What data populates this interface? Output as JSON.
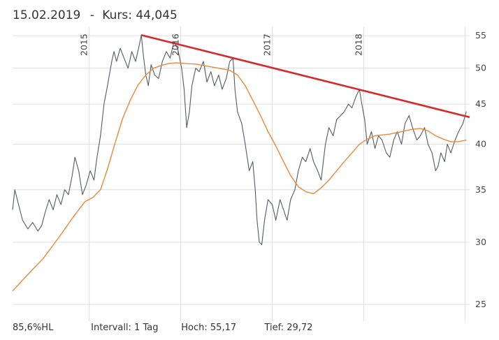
{
  "header": {
    "date": "15.02.2019",
    "separator": "-",
    "price_label": "Kurs:",
    "price": "44,045"
  },
  "footer": {
    "scale": "85,6%HL",
    "interval": "Intervall: 1 Tag",
    "high": "Hoch:  55,17",
    "low": "Tief:  29,72"
  },
  "chart_data": {
    "type": "line",
    "y_scale": "log",
    "ylim": [
      23.8,
      56.5
    ],
    "xlim": [
      "2014-03-01",
      "2019-02-28"
    ],
    "y_ticks": [
      "25",
      "30",
      "35",
      "40",
      "45",
      "50",
      "55"
    ],
    "x_ticks": [
      "2015",
      "2016",
      "2017",
      "2018"
    ],
    "grid": true,
    "colors": {
      "price": "#555a60",
      "moving_average": "#e8883a",
      "trendline": "#d42a2a",
      "grid": "#dddddd"
    },
    "series": [
      {
        "role": "price",
        "points": [
          [
            "2014-03-01",
            33.0
          ],
          [
            "2014-03-10",
            35.0
          ],
          [
            "2014-03-25",
            33.5
          ],
          [
            "2014-04-10",
            32.0
          ],
          [
            "2014-05-01",
            31.2
          ],
          [
            "2014-05-20",
            31.8
          ],
          [
            "2014-06-10",
            31.0
          ],
          [
            "2014-06-25",
            31.5
          ],
          [
            "2014-07-10",
            32.8
          ],
          [
            "2014-07-25",
            34.0
          ],
          [
            "2014-08-10",
            33.0
          ],
          [
            "2014-08-25",
            34.5
          ],
          [
            "2014-09-10",
            33.5
          ],
          [
            "2014-09-25",
            35.0
          ],
          [
            "2014-10-10",
            34.5
          ],
          [
            "2014-10-25",
            36.5
          ],
          [
            "2014-11-05",
            38.5
          ],
          [
            "2014-11-20",
            37.0
          ],
          [
            "2014-12-05",
            34.5
          ],
          [
            "2014-12-20",
            35.5
          ],
          [
            "2015-01-05",
            37.0
          ],
          [
            "2015-01-20",
            36.0
          ],
          [
            "2015-02-01",
            38.5
          ],
          [
            "2015-02-15",
            41.0
          ],
          [
            "2015-03-01",
            45.0
          ],
          [
            "2015-03-15",
            47.5
          ],
          [
            "2015-04-01",
            51.0
          ],
          [
            "2015-04-10",
            52.5
          ],
          [
            "2015-04-20",
            51.0
          ],
          [
            "2015-05-05",
            53.0
          ],
          [
            "2015-05-20",
            51.5
          ],
          [
            "2015-06-05",
            50.0
          ],
          [
            "2015-06-20",
            52.5
          ],
          [
            "2015-07-05",
            51.0
          ],
          [
            "2015-07-20",
            53.5
          ],
          [
            "2015-07-28",
            55.1
          ],
          [
            "2015-08-05",
            52.0
          ],
          [
            "2015-08-15",
            49.0
          ],
          [
            "2015-08-25",
            47.5
          ],
          [
            "2015-09-05",
            50.5
          ],
          [
            "2015-09-20",
            49.0
          ],
          [
            "2015-10-05",
            48.5
          ],
          [
            "2015-10-20",
            51.0
          ],
          [
            "2015-11-05",
            52.5
          ],
          [
            "2015-11-20",
            51.5
          ],
          [
            "2015-12-05",
            54.0
          ],
          [
            "2015-12-20",
            53.0
          ],
          [
            "2016-01-05",
            50.0
          ],
          [
            "2016-01-15",
            47.0
          ],
          [
            "2016-01-25",
            42.0
          ],
          [
            "2016-02-05",
            44.0
          ],
          [
            "2016-02-15",
            47.5
          ],
          [
            "2016-03-01",
            50.0
          ],
          [
            "2016-03-15",
            49.5
          ],
          [
            "2016-04-01",
            51.0
          ],
          [
            "2016-04-15",
            48.0
          ],
          [
            "2016-05-01",
            49.5
          ],
          [
            "2016-05-15",
            47.5
          ],
          [
            "2016-06-01",
            49.0
          ],
          [
            "2016-06-15",
            47.0
          ],
          [
            "2016-07-01",
            48.5
          ],
          [
            "2016-07-15",
            51.0
          ],
          [
            "2016-07-28",
            51.5
          ],
          [
            "2016-08-05",
            47.0
          ],
          [
            "2016-08-15",
            44.0
          ],
          [
            "2016-09-01",
            42.5
          ],
          [
            "2016-09-15",
            40.0
          ],
          [
            "2016-10-01",
            37.0
          ],
          [
            "2016-10-15",
            38.0
          ],
          [
            "2016-10-25",
            35.0
          ],
          [
            "2016-11-01",
            32.0
          ],
          [
            "2016-11-10",
            30.0
          ],
          [
            "2016-11-20",
            29.8
          ],
          [
            "2016-12-01",
            32.0
          ],
          [
            "2016-12-15",
            34.0
          ],
          [
            "2017-01-01",
            33.5
          ],
          [
            "2017-01-15",
            32.0
          ],
          [
            "2017-02-01",
            34.0
          ],
          [
            "2017-02-15",
            33.0
          ],
          [
            "2017-03-01",
            32.0
          ],
          [
            "2017-03-15",
            34.0
          ],
          [
            "2017-04-01",
            35.0
          ],
          [
            "2017-04-15",
            37.0
          ],
          [
            "2017-05-01",
            38.5
          ],
          [
            "2017-05-15",
            38.0
          ],
          [
            "2017-06-01",
            39.5
          ],
          [
            "2017-06-15",
            38.0
          ],
          [
            "2017-07-01",
            37.0
          ],
          [
            "2017-07-15",
            36.0
          ],
          [
            "2017-08-01",
            40.0
          ],
          [
            "2017-08-15",
            42.0
          ],
          [
            "2017-09-01",
            41.0
          ],
          [
            "2017-09-15",
            43.0
          ],
          [
            "2017-10-01",
            43.5
          ],
          [
            "2017-10-15",
            44.0
          ],
          [
            "2017-11-01",
            45.0
          ],
          [
            "2017-11-15",
            44.5
          ],
          [
            "2017-12-01",
            46.0
          ],
          [
            "2017-12-15",
            47.0
          ],
          [
            "2017-12-22",
            45.5
          ],
          [
            "2018-01-05",
            43.0
          ],
          [
            "2018-01-15",
            40.0
          ],
          [
            "2018-02-01",
            41.5
          ],
          [
            "2018-02-15",
            39.5
          ],
          [
            "2018-03-01",
            41.0
          ],
          [
            "2018-03-15",
            40.5
          ],
          [
            "2018-04-01",
            39.0
          ],
          [
            "2018-04-15",
            38.5
          ],
          [
            "2018-05-01",
            40.5
          ],
          [
            "2018-05-15",
            41.5
          ],
          [
            "2018-06-01",
            40.0
          ],
          [
            "2018-06-15",
            42.5
          ],
          [
            "2018-07-01",
            43.5
          ],
          [
            "2018-07-15",
            42.0
          ],
          [
            "2018-08-01",
            40.5
          ],
          [
            "2018-08-15",
            41.0
          ],
          [
            "2018-09-01",
            42.0
          ],
          [
            "2018-09-15",
            40.0
          ],
          [
            "2018-10-01",
            39.0
          ],
          [
            "2018-10-15",
            37.0
          ],
          [
            "2018-10-25",
            37.5
          ],
          [
            "2018-11-05",
            39.0
          ],
          [
            "2018-11-20",
            38.0
          ],
          [
            "2018-12-01",
            40.0
          ],
          [
            "2018-12-15",
            39.0
          ],
          [
            "2019-01-01",
            40.5
          ],
          [
            "2019-01-15",
            41.5
          ],
          [
            "2019-02-01",
            42.5
          ],
          [
            "2019-02-15",
            44.045
          ]
        ]
      },
      {
        "role": "moving_average",
        "points": [
          [
            "2014-03-01",
            26.0
          ],
          [
            "2014-05-01",
            27.3
          ],
          [
            "2014-07-01",
            28.6
          ],
          [
            "2014-09-01",
            30.4
          ],
          [
            "2014-11-01",
            32.4
          ],
          [
            "2014-12-15",
            33.8
          ],
          [
            "2015-01-15",
            34.2
          ],
          [
            "2015-02-15",
            35.0
          ],
          [
            "2015-03-15",
            37.2
          ],
          [
            "2015-04-15",
            40.2
          ],
          [
            "2015-05-15",
            43.2
          ],
          [
            "2015-06-15",
            45.6
          ],
          [
            "2015-07-15",
            47.6
          ],
          [
            "2015-08-15",
            49.0
          ],
          [
            "2015-09-15",
            50.0
          ],
          [
            "2015-10-15",
            50.4
          ],
          [
            "2015-11-15",
            50.7
          ],
          [
            "2015-12-15",
            50.8
          ],
          [
            "2016-01-15",
            50.7
          ],
          [
            "2016-03-01",
            50.6
          ],
          [
            "2016-04-15",
            50.3
          ],
          [
            "2016-06-01",
            50.0
          ],
          [
            "2016-07-15",
            49.7
          ],
          [
            "2016-08-15",
            49.0
          ],
          [
            "2016-09-15",
            47.5
          ],
          [
            "2016-10-15",
            45.5
          ],
          [
            "2016-11-15",
            43.5
          ],
          [
            "2016-12-15",
            41.5
          ],
          [
            "2017-01-15",
            39.8
          ],
          [
            "2017-02-15",
            38.0
          ],
          [
            "2017-03-15",
            36.5
          ],
          [
            "2017-04-15",
            35.3
          ],
          [
            "2017-05-15",
            34.8
          ],
          [
            "2017-06-15",
            34.6
          ],
          [
            "2017-07-15",
            35.2
          ],
          [
            "2017-08-15",
            36.0
          ],
          [
            "2017-09-15",
            37.0
          ],
          [
            "2017-10-15",
            38.0
          ],
          [
            "2017-11-15",
            39.0
          ],
          [
            "2017-12-15",
            40.0
          ],
          [
            "2018-01-15",
            40.6
          ],
          [
            "2018-02-15",
            41.0
          ],
          [
            "2018-03-15",
            41.1
          ],
          [
            "2018-04-15",
            41.2
          ],
          [
            "2018-05-15",
            41.4
          ],
          [
            "2018-06-15",
            41.6
          ],
          [
            "2018-07-15",
            41.8
          ],
          [
            "2018-08-15",
            41.9
          ],
          [
            "2018-09-15",
            41.6
          ],
          [
            "2018-10-15",
            41.0
          ],
          [
            "2018-11-15",
            40.6
          ],
          [
            "2018-12-15",
            40.3
          ],
          [
            "2019-01-15",
            40.3
          ],
          [
            "2019-02-15",
            40.5
          ]
        ]
      },
      {
        "role": "trendline",
        "points": [
          [
            "2015-07-28",
            55.1
          ],
          [
            "2019-02-28",
            43.3
          ]
        ]
      }
    ]
  }
}
